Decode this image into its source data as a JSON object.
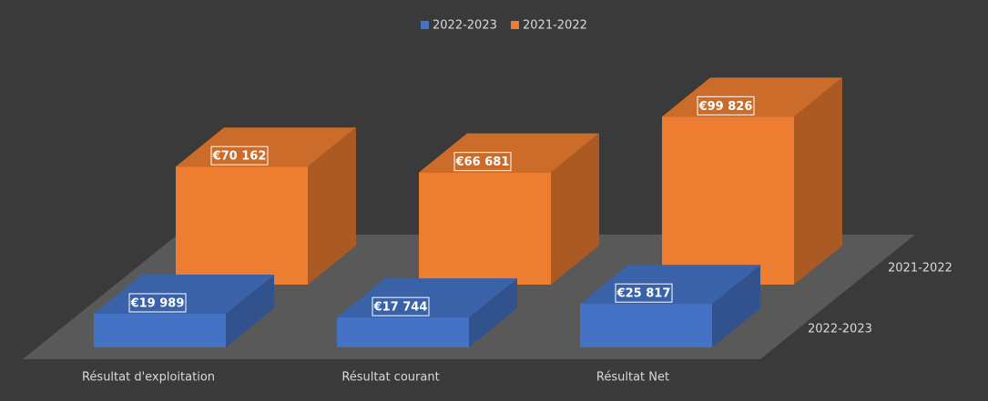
{
  "chart_data": {
    "type": "bar3d",
    "categories": [
      "Résultat d'exploitation",
      "Résultat courant",
      "Résultat Net"
    ],
    "series": [
      {
        "name": "2022-2023",
        "color": "#4472c4",
        "values": [
          19989,
          17744,
          25817
        ],
        "value_labels": [
          "€19 989",
          "€17 744",
          "€25 817"
        ]
      },
      {
        "name": "2021-2022",
        "color": "#ed7d31",
        "values": [
          70162,
          66681,
          99826
        ],
        "value_labels": [
          "€70 162",
          "€66 681",
          "€99 826"
        ]
      }
    ],
    "legend": "top"
  }
}
